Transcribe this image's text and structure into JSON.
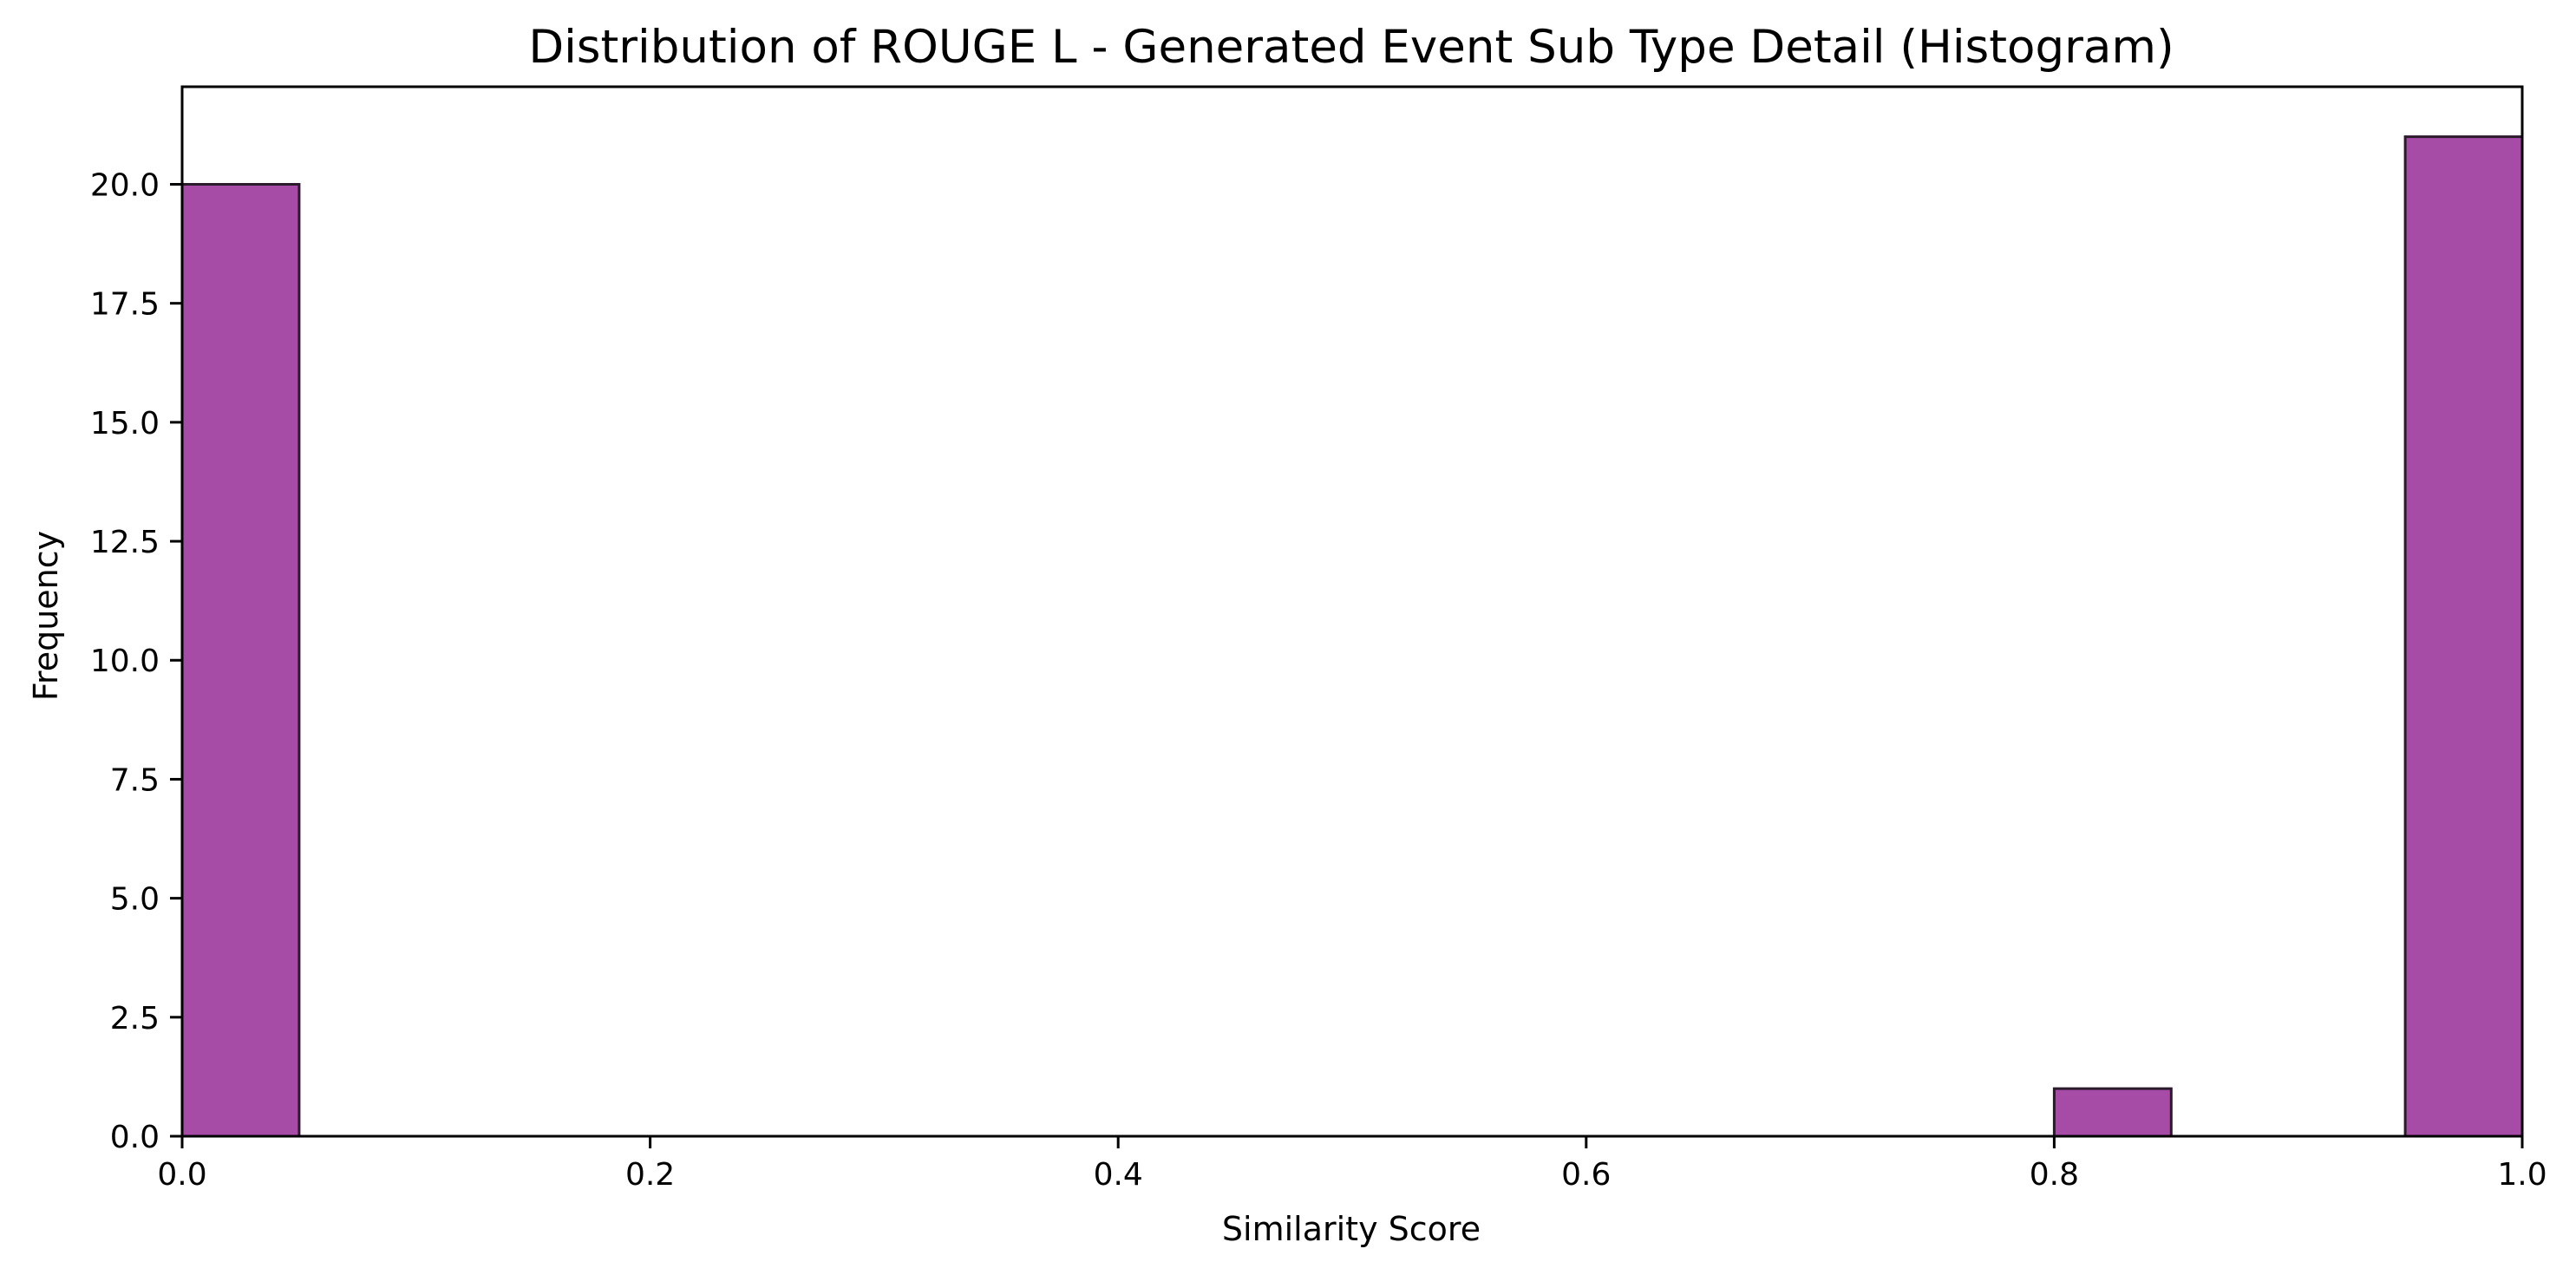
{
  "chart_data": {
    "type": "bar",
    "title": "Distribution of ROUGE L - Generated Event Sub Type Detail (Histogram)",
    "xlabel": "Similarity Score",
    "ylabel": "Frequency",
    "xlim": [
      0.0,
      1.0
    ],
    "ylim": [
      0,
      22.05
    ],
    "x_ticks": [
      "0.0",
      "0.2",
      "0.4",
      "0.6",
      "0.8",
      "1.0"
    ],
    "y_ticks": [
      "0.0",
      "2.5",
      "5.0",
      "7.5",
      "10.0",
      "12.5",
      "15.0",
      "17.5",
      "20.0"
    ],
    "bin_width": 0.05,
    "bins": [
      {
        "start": 0.0,
        "end": 0.05,
        "count": 20
      },
      {
        "start": 0.8,
        "end": 0.85,
        "count": 1
      },
      {
        "start": 0.95,
        "end": 1.0,
        "count": 21
      }
    ],
    "bar_color": "#a64ca6",
    "bar_edge_color": "#2b1a2b",
    "grid": false,
    "legend": false
  }
}
